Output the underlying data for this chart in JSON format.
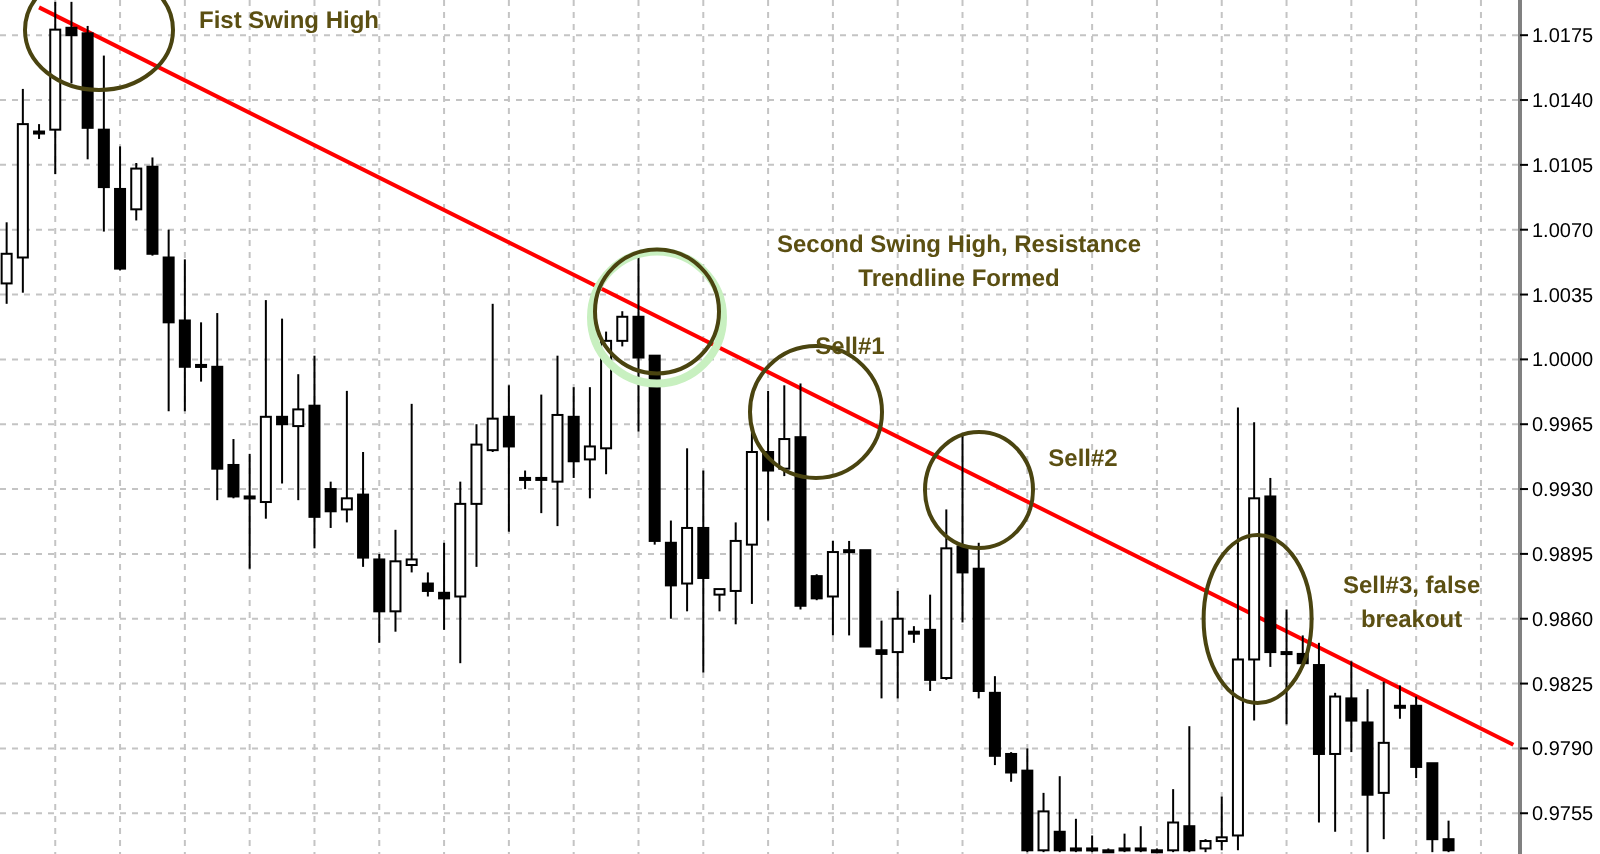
{
  "chart_data": {
    "type": "candlestick",
    "categories": [
      null,
      null,
      null,
      null,
      null,
      null,
      null,
      null,
      null,
      null,
      null,
      null,
      null,
      null,
      null,
      null,
      null,
      null,
      null,
      null,
      null,
      null,
      null,
      null,
      null,
      null,
      null,
      null,
      null,
      null,
      null,
      null,
      null,
      null,
      null,
      null,
      null,
      null,
      null,
      null,
      null,
      null,
      null,
      null,
      null,
      null,
      null,
      null,
      null,
      null,
      null,
      null,
      null,
      null,
      null,
      null,
      null,
      null,
      null,
      null,
      null,
      null,
      null,
      null,
      null,
      null,
      null,
      null,
      null,
      null,
      null,
      null,
      null,
      null,
      null,
      null,
      null,
      null,
      null,
      null,
      null,
      null,
      null,
      null,
      null,
      null,
      null,
      null,
      null,
      null,
      null,
      null,
      null,
      null
    ],
    "ohlc": [
      [
        1.0041,
        1.0074,
        1.003,
        1.0057
      ],
      [
        1.0055,
        1.0146,
        1.0036,
        1.0127
      ],
      [
        1.0122,
        1.0127,
        1.0119,
        1.0123
      ],
      [
        1.0124,
        1.0193,
        1.01,
        1.0178
      ],
      [
        1.0179,
        1.0193,
        1.0149,
        1.0175
      ],
      [
        1.0176,
        1.018,
        1.0108,
        1.0125
      ],
      [
        1.0124,
        1.0164,
        1.0069,
        1.0093
      ],
      [
        1.0092,
        1.0115,
        1.0048,
        1.0049
      ],
      [
        1.0081,
        1.0106,
        1.0075,
        1.0103
      ],
      [
        1.0104,
        1.0109,
        1.0056,
        1.0057
      ],
      [
        1.0055,
        1.007,
        0.9972,
        1.002
      ],
      [
        1.0021,
        1.0054,
        0.9972,
        0.9996
      ],
      [
        0.9997,
        1.002,
        0.9988,
        0.9996
      ],
      [
        0.9996,
        1.0025,
        0.9924,
        0.9941
      ],
      [
        0.9943,
        0.9957,
        0.9925,
        0.9926
      ],
      [
        0.9926,
        0.9949,
        0.9887,
        0.9925
      ],
      [
        0.9923,
        1.0032,
        0.9914,
        0.9969
      ],
      [
        0.9969,
        1.0022,
        0.9933,
        0.9965
      ],
      [
        0.9964,
        0.9992,
        0.9924,
        0.9973
      ],
      [
        0.9975,
        1.0002,
        0.9898,
        0.9915
      ],
      [
        0.993,
        0.9934,
        0.9909,
        0.9918
      ],
      [
        0.9919,
        0.9983,
        0.9912,
        0.9925
      ],
      [
        0.9927,
        0.995,
        0.9888,
        0.9893
      ],
      [
        0.9892,
        0.9895,
        0.9847,
        0.9864
      ],
      [
        0.9864,
        0.9908,
        0.9853,
        0.9891
      ],
      [
        0.9889,
        0.9976,
        0.9885,
        0.9892
      ],
      [
        0.9879,
        0.9885,
        0.9872,
        0.9875
      ],
      [
        0.9874,
        0.9901,
        0.9854,
        0.9871
      ],
      [
        0.9872,
        0.9934,
        0.9836,
        0.9922
      ],
      [
        0.9922,
        0.9965,
        0.9888,
        0.9954
      ],
      [
        0.9951,
        1.003,
        0.995,
        0.9968
      ],
      [
        0.9969,
        0.9986,
        0.9907,
        0.9953
      ],
      [
        0.9936,
        0.994,
        0.993,
        0.9935
      ],
      [
        0.9936,
        0.9981,
        0.9917,
        0.9935
      ],
      [
        0.9934,
        1.0002,
        0.991,
        0.997
      ],
      [
        0.9969,
        0.9985,
        0.9936,
        0.9945
      ],
      [
        0.9946,
        0.9985,
        0.9925,
        0.9953
      ],
      [
        0.9952,
        1.0015,
        0.9938,
        1.001
      ],
      [
        1.001,
        1.0026,
        1.0007,
        1.0023
      ],
      [
        1.0023,
        1.0057,
        0.9961,
        1.0001
      ],
      [
        1.0002,
        1.0002,
        0.99,
        0.9902
      ],
      [
        0.9901,
        0.9913,
        0.986,
        0.9878
      ],
      [
        0.9879,
        0.9952,
        0.9864,
        0.9909
      ],
      [
        0.9909,
        0.994,
        0.9831,
        0.9882
      ],
      [
        0.9873,
        0.9876,
        0.9864,
        0.9876
      ],
      [
        0.9875,
        0.9912,
        0.9857,
        0.9902
      ],
      [
        0.99,
        0.9965,
        0.9868,
        0.995
      ],
      [
        0.995,
        0.9983,
        0.9913,
        0.994
      ],
      [
        0.9941,
        0.9986,
        0.9937,
        0.9957
      ],
      [
        0.9958,
        0.9987,
        0.9865,
        0.9867
      ],
      [
        0.9883,
        0.9884,
        0.987,
        0.9871
      ],
      [
        0.9872,
        0.9902,
        0.9851,
        0.9896
      ],
      [
        0.9897,
        0.9902,
        0.9851,
        0.9896
      ],
      [
        0.9897,
        0.9897,
        0.9845,
        0.9845
      ],
      [
        0.9843,
        0.9859,
        0.9817,
        0.9841
      ],
      [
        0.9842,
        0.9875,
        0.9817,
        0.986
      ],
      [
        0.9853,
        0.9856,
        0.9847,
        0.9852
      ],
      [
        0.9854,
        0.9873,
        0.9821,
        0.9827
      ],
      [
        0.9828,
        0.9919,
        0.9827,
        0.9898
      ],
      [
        0.9899,
        0.9959,
        0.9858,
        0.9885
      ],
      [
        0.9887,
        0.9901,
        0.9817,
        0.9821
      ],
      [
        0.982,
        0.9829,
        0.9781,
        0.9786
      ],
      [
        0.9787,
        0.9788,
        0.9772,
        0.9777
      ],
      [
        0.9778,
        0.979,
        0.9734,
        0.9735
      ],
      [
        0.9735,
        0.9766,
        0.9734,
        0.9756
      ],
      [
        0.9745,
        0.9775,
        0.9734,
        0.9735
      ],
      [
        0.9736,
        0.9752,
        0.9734,
        0.9735
      ],
      [
        0.9736,
        0.9743,
        0.9734,
        0.9735
      ],
      [
        0.9735,
        0.9736,
        0.9734,
        0.9734
      ],
      [
        0.9736,
        0.9744,
        0.9734,
        0.9735
      ],
      [
        0.9736,
        0.9748,
        0.9734,
        0.9735
      ],
      [
        0.9735,
        0.9736,
        0.9734,
        0.9734
      ],
      [
        0.9735,
        0.9768,
        0.9734,
        0.975
      ],
      [
        0.9748,
        0.9802,
        0.9734,
        0.9735
      ],
      [
        0.9736,
        0.9741,
        0.9734,
        0.974
      ],
      [
        0.974,
        0.9764,
        0.9735,
        0.9742
      ],
      [
        0.9743,
        0.9974,
        0.9735,
        0.9838
      ],
      [
        0.9838,
        0.9966,
        0.9805,
        0.9925
      ],
      [
        0.9926,
        0.9936,
        0.9834,
        0.9842
      ],
      [
        0.9842,
        0.9865,
        0.9803,
        0.9841
      ],
      [
        0.9841,
        0.9851,
        0.9836,
        0.9836
      ],
      [
        0.9835,
        0.9847,
        0.975,
        0.9787
      ],
      [
        0.9787,
        0.982,
        0.9745,
        0.9818
      ],
      [
        0.9817,
        0.9837,
        0.9788,
        0.9805
      ],
      [
        0.9804,
        0.9822,
        0.9734,
        0.9765
      ],
      [
        0.9766,
        0.9826,
        0.9741,
        0.9793
      ],
      [
        0.9813,
        0.9824,
        0.9806,
        0.9812
      ],
      [
        0.9813,
        0.9818,
        0.9774,
        0.978
      ],
      [
        0.9782,
        0.9782,
        0.9734,
        0.9741
      ],
      [
        0.9741,
        0.9751,
        0.9734,
        0.9735
      ],
      null,
      null,
      null,
      null
    ],
    "series": [
      {
        "type": "line",
        "values": [
          null,
          null,
          1.019,
          null,
          null,
          null,
          null,
          null,
          null,
          null,
          null,
          null,
          null,
          null,
          null,
          null,
          null,
          null,
          null,
          null,
          null,
          null,
          null,
          null,
          null,
          null,
          null,
          null,
          null,
          null,
          null,
          null,
          null,
          null,
          null,
          null,
          null,
          null,
          null,
          null,
          null,
          null,
          null,
          null,
          null,
          null,
          null,
          null,
          null,
          null,
          null,
          null,
          null,
          null,
          null,
          null,
          null,
          null,
          null,
          null,
          null,
          null,
          null,
          null,
          null,
          null,
          null,
          null,
          null,
          null,
          null,
          null,
          null,
          null,
          null,
          null,
          null,
          null,
          null,
          null,
          null,
          null,
          null,
          null,
          null,
          null,
          null,
          null,
          null,
          null,
          null,
          null,
          null,
          0.9792
        ],
        "color": "#ff0000"
      }
    ],
    "annotations": [
      "Fist Swing High",
      "Second Swing High, Resistance Trendline Formed",
      "Sell#1",
      "Sell#2",
      "Sell#3, false breakout"
    ],
    "ylim": [
      0.9733,
      1.0194
    ],
    "yticks": [
      {
        "value": 1.0175,
        "label": "1.0175"
      },
      {
        "value": 1.014,
        "label": "1.0140"
      },
      {
        "value": 1.0105,
        "label": "1.0105"
      },
      {
        "value": 1.007,
        "label": "1.0070"
      },
      {
        "value": 1.0035,
        "label": "1.0035"
      },
      {
        "value": 1.0,
        "label": "1.0000"
      },
      {
        "value": 0.9965,
        "label": "0.9965"
      },
      {
        "value": 0.993,
        "label": "0.9930"
      },
      {
        "value": 0.9895,
        "label": "0.9895"
      },
      {
        "value": 0.986,
        "label": "0.9860"
      },
      {
        "value": 0.9825,
        "label": "0.9825"
      },
      {
        "value": 0.979,
        "label": "0.9790"
      },
      {
        "value": 0.9755,
        "label": "0.9755"
      }
    ],
    "grid": true
  }
}
